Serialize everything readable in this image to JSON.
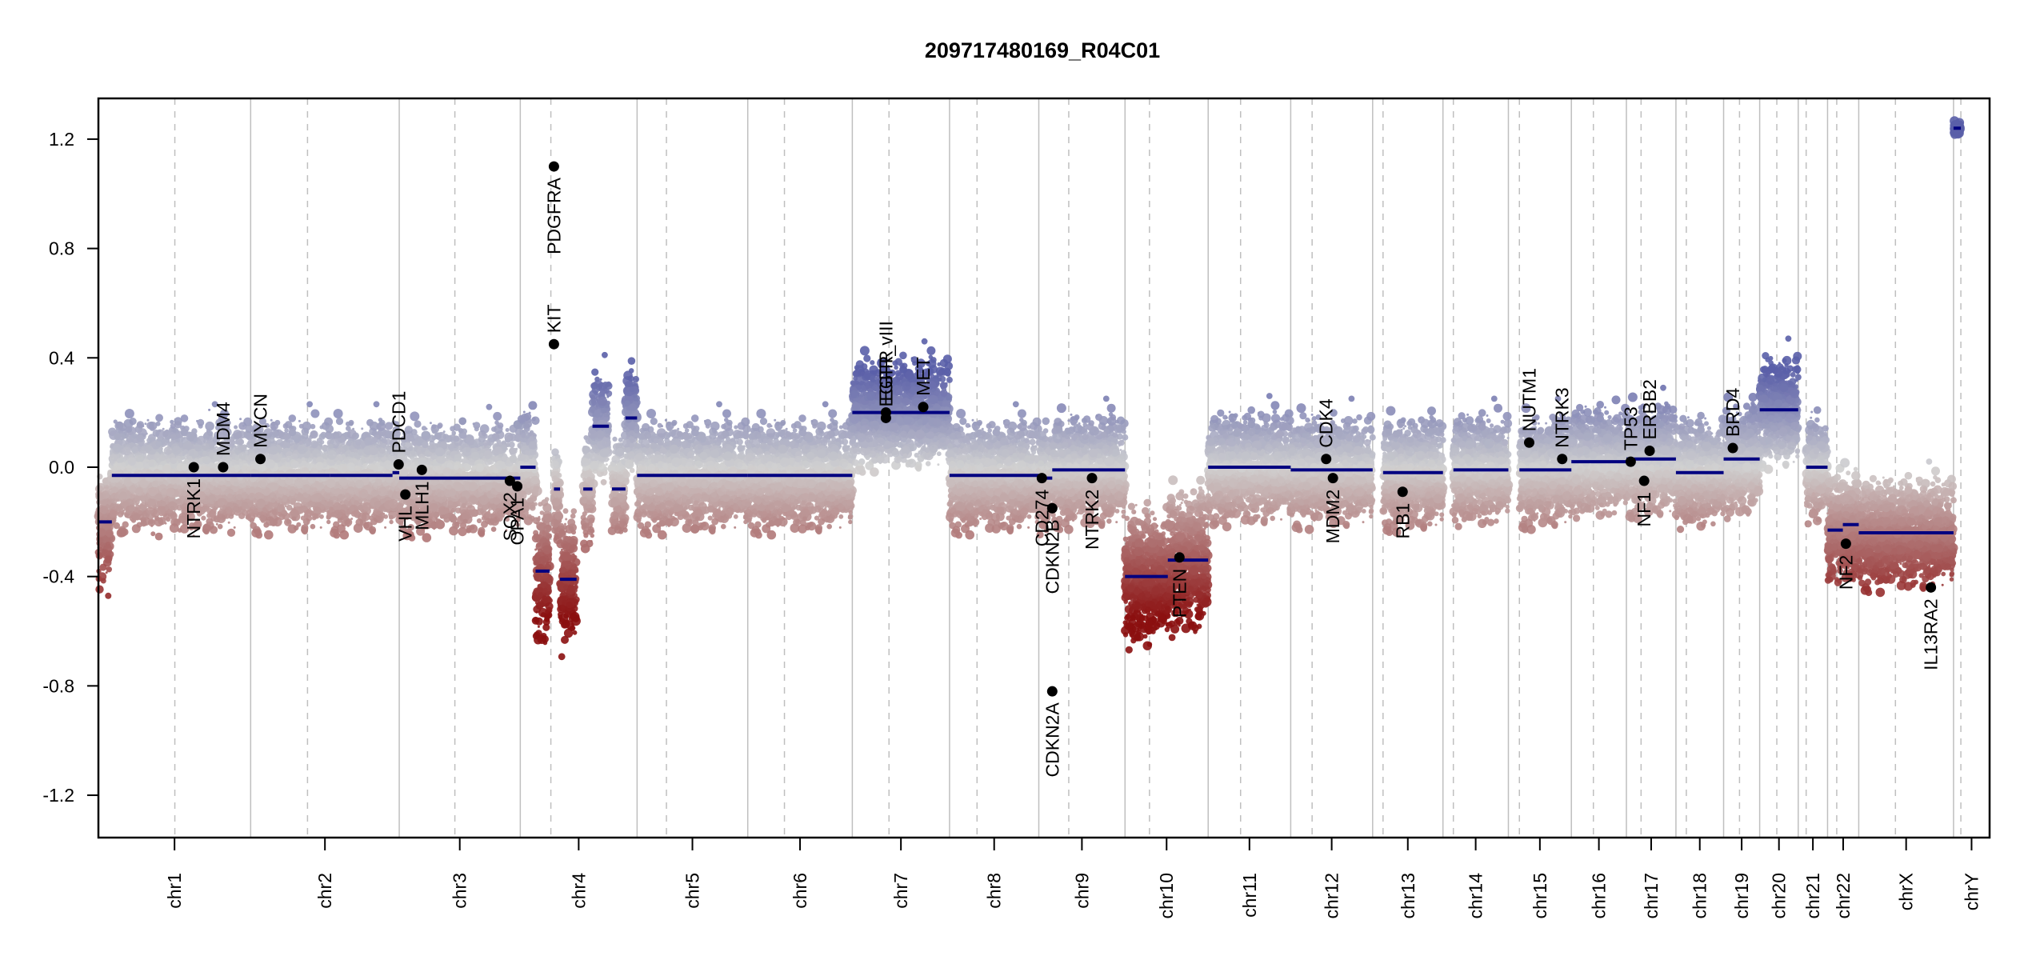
{
  "chart_data": {
    "type": "scatter",
    "title": "209717480169_R04C01",
    "xlabel": "",
    "ylabel": "",
    "ylim": [
      -1.355,
      1.349
    ],
    "y_ticks": [
      -1.2,
      -0.8,
      -0.4,
      0.0,
      0.4,
      0.8,
      1.2
    ],
    "y_tick_labels": [
      "-1.2",
      "-0.8",
      "-0.4",
      "0.0",
      "0.4",
      "0.8",
      "1.2"
    ],
    "grid": false,
    "legend": "none",
    "colors": {
      "gain": "#5a5fa8",
      "neutral": "#d0d0d0",
      "loss": "#8b0f0f",
      "segment": "#000080",
      "gene_point": "#000000",
      "chrom_line": "#bfbfbf",
      "centromere_line": "#bfbfbf"
    },
    "chromosomes": [
      {
        "name": "chr1",
        "length": 249,
        "centromere": 125
      },
      {
        "name": "chr2",
        "length": 243,
        "centromere": 93
      },
      {
        "name": "chr3",
        "length": 198,
        "centromere": 91
      },
      {
        "name": "chr4",
        "length": 191,
        "centromere": 50
      },
      {
        "name": "chr5",
        "length": 181,
        "centromere": 48
      },
      {
        "name": "chr6",
        "length": 171,
        "centromere": 60
      },
      {
        "name": "chr7",
        "length": 159,
        "centromere": 60
      },
      {
        "name": "chr8",
        "length": 146,
        "centromere": 45
      },
      {
        "name": "chr9",
        "length": 141,
        "centromere": 49
      },
      {
        "name": "chr10",
        "length": 136,
        "centromere": 40
      },
      {
        "name": "chr11",
        "length": 135,
        "centromere": 53
      },
      {
        "name": "chr12",
        "length": 134,
        "centromere": 35
      },
      {
        "name": "chr13",
        "length": 115,
        "centromere": 17
      },
      {
        "name": "chr14",
        "length": 107,
        "centromere": 17
      },
      {
        "name": "chr15",
        "length": 103,
        "centromere": 18
      },
      {
        "name": "chr16",
        "length": 90,
        "centromere": 36
      },
      {
        "name": "chr17",
        "length": 81,
        "centromere": 24
      },
      {
        "name": "chr18",
        "length": 78,
        "centromere": 17
      },
      {
        "name": "chr19",
        "length": 59,
        "centromere": 26
      },
      {
        "name": "chr20",
        "length": 63,
        "centromere": 28
      },
      {
        "name": "chr21",
        "length": 48,
        "centromere": 13
      },
      {
        "name": "chr22",
        "length": 51,
        "centromere": 15
      },
      {
        "name": "chrX",
        "length": 155,
        "centromere": 60
      },
      {
        "name": "chrY",
        "length": 59,
        "centromere": 12
      }
    ],
    "segments": [
      {
        "chr": "chr1",
        "start": 0,
        "end": 22,
        "value": -0.2
      },
      {
        "chr": "chr1",
        "start": 22,
        "end": 249,
        "value": -0.03
      },
      {
        "chr": "chr2",
        "start": 0,
        "end": 130,
        "value": -0.03
      },
      {
        "chr": "chr2",
        "start": 130,
        "end": 232,
        "value": -0.03
      },
      {
        "chr": "chr2",
        "start": 232,
        "end": 243,
        "value": -0.02
      },
      {
        "chr": "chr3",
        "start": 0,
        "end": 198,
        "value": -0.04
      },
      {
        "chr": "chr4",
        "start": 0,
        "end": 25,
        "value": 0.0
      },
      {
        "chr": "chr4",
        "start": 25,
        "end": 48,
        "value": -0.38
      },
      {
        "chr": "chr4",
        "start": 55,
        "end": 65,
        "value": -0.08
      },
      {
        "chr": "chr4",
        "start": 65,
        "end": 92,
        "value": -0.41
      },
      {
        "chr": "chr4",
        "start": 103,
        "end": 118,
        "value": -0.08
      },
      {
        "chr": "chr4",
        "start": 118,
        "end": 145,
        "value": 0.15
      },
      {
        "chr": "chr4",
        "start": 150,
        "end": 172,
        "value": -0.08
      },
      {
        "chr": "chr4",
        "start": 172,
        "end": 191,
        "value": 0.18
      },
      {
        "chr": "chr5",
        "start": 0,
        "end": 181,
        "value": -0.03
      },
      {
        "chr": "chr6",
        "start": 0,
        "end": 171,
        "value": -0.03
      },
      {
        "chr": "chr7",
        "start": 0,
        "end": 159,
        "value": 0.2
      },
      {
        "chr": "chr8",
        "start": 0,
        "end": 146,
        "value": -0.03
      },
      {
        "chr": "chr9",
        "start": 0,
        "end": 22,
        "value": -0.04
      },
      {
        "chr": "chr9",
        "start": 22,
        "end": 141,
        "value": -0.01
      },
      {
        "chr": "chr10",
        "start": 0,
        "end": 70,
        "value": -0.4
      },
      {
        "chr": "chr10",
        "start": 70,
        "end": 136,
        "value": -0.34
      },
      {
        "chr": "chr11",
        "start": 0,
        "end": 135,
        "value": 0.0
      },
      {
        "chr": "chr12",
        "start": 0,
        "end": 134,
        "value": -0.01
      },
      {
        "chr": "chr13",
        "start": 17,
        "end": 115,
        "value": -0.02
      },
      {
        "chr": "chr14",
        "start": 17,
        "end": 107,
        "value": -0.01
      },
      {
        "chr": "chr15",
        "start": 18,
        "end": 103,
        "value": -0.01
      },
      {
        "chr": "chr16",
        "start": 0,
        "end": 90,
        "value": 0.02
      },
      {
        "chr": "chr17",
        "start": 0,
        "end": 81,
        "value": 0.03
      },
      {
        "chr": "chr18",
        "start": 0,
        "end": 78,
        "value": -0.02
      },
      {
        "chr": "chr19",
        "start": 0,
        "end": 59,
        "value": 0.03
      },
      {
        "chr": "chr20",
        "start": 0,
        "end": 63,
        "value": 0.21
      },
      {
        "chr": "chr21",
        "start": 13,
        "end": 48,
        "value": 0.0
      },
      {
        "chr": "chr22",
        "start": 0,
        "end": 25,
        "value": -0.23
      },
      {
        "chr": "chr22",
        "start": 25,
        "end": 51,
        "value": -0.21
      },
      {
        "chr": "chrX",
        "start": 0,
        "end": 155,
        "value": -0.24
      },
      {
        "chr": "chrY",
        "start": 0,
        "end": 12,
        "value": 1.24
      }
    ],
    "genes": [
      {
        "name": "NTRK1",
        "chr": "chr1",
        "pos": 156,
        "value": 0.0,
        "label_side": "below"
      },
      {
        "name": "MDM4",
        "chr": "chr1",
        "pos": 204,
        "value": 0.0,
        "label_side": "above"
      },
      {
        "name": "MYCN",
        "chr": "chr2",
        "pos": 16,
        "value": 0.03,
        "label_side": "above"
      },
      {
        "name": "PDCD1",
        "chr": "chr2",
        "pos": 242,
        "value": 0.01,
        "label_side": "above"
      },
      {
        "name": "VHL",
        "chr": "chr3",
        "pos": 10,
        "value": -0.1,
        "label_side": "below"
      },
      {
        "name": "MLH1",
        "chr": "chr3",
        "pos": 37,
        "value": -0.01,
        "label_side": "below"
      },
      {
        "name": "SOX2",
        "chr": "chr3",
        "pos": 181,
        "value": -0.05,
        "label_side": "below"
      },
      {
        "name": "OPA1",
        "chr": "chr3",
        "pos": 193,
        "value": -0.07,
        "label_side": "below"
      },
      {
        "name": "PDGFRA",
        "chr": "chr4",
        "pos": 55,
        "value": 1.1,
        "label_side": "below"
      },
      {
        "name": "KIT",
        "chr": "chr4",
        "pos": 55,
        "value": 0.45,
        "label_side": "above"
      },
      {
        "name": "EGFR",
        "chr": "chr7",
        "pos": 55,
        "value": 0.2,
        "label_side": "above"
      },
      {
        "name": "EGFR_vIII",
        "chr": "chr7",
        "pos": 55,
        "value": 0.18,
        "label_side": "above"
      },
      {
        "name": "MET",
        "chr": "chr7",
        "pos": 116,
        "value": 0.22,
        "label_side": "above"
      },
      {
        "name": "CD274",
        "chr": "chr9",
        "pos": 5,
        "value": -0.04,
        "label_side": "below"
      },
      {
        "name": "CDKN2B",
        "chr": "chr9",
        "pos": 22,
        "value": -0.15,
        "label_side": "below"
      },
      {
        "name": "CDKN2A",
        "chr": "chr9",
        "pos": 22,
        "value": -0.82,
        "label_side": "below"
      },
      {
        "name": "NTRK2",
        "chr": "chr9",
        "pos": 87,
        "value": -0.04,
        "label_side": "below"
      },
      {
        "name": "PTEN",
        "chr": "chr10",
        "pos": 89,
        "value": -0.33,
        "label_side": "below"
      },
      {
        "name": "CDK4",
        "chr": "chr12",
        "pos": 58,
        "value": 0.03,
        "label_side": "above"
      },
      {
        "name": "MDM2",
        "chr": "chr12",
        "pos": 69,
        "value": -0.04,
        "label_side": "below"
      },
      {
        "name": "RB1",
        "chr": "chr13",
        "pos": 49,
        "value": -0.09,
        "label_side": "below"
      },
      {
        "name": "NUTM1",
        "chr": "chr15",
        "pos": 34,
        "value": 0.09,
        "label_side": "above"
      },
      {
        "name": "NTRK3",
        "chr": "chr15",
        "pos": 88,
        "value": 0.03,
        "label_side": "above"
      },
      {
        "name": "TP53",
        "chr": "chr17",
        "pos": 7,
        "value": 0.02,
        "label_side": "above"
      },
      {
        "name": "NF1",
        "chr": "chr17",
        "pos": 29,
        "value": -0.05,
        "label_side": "below"
      },
      {
        "name": "ERBB2",
        "chr": "chr17",
        "pos": 38,
        "value": 0.06,
        "label_side": "above"
      },
      {
        "name": "BRD4",
        "chr": "chr19",
        "pos": 15,
        "value": 0.07,
        "label_side": "above"
      },
      {
        "name": "NF2",
        "chr": "chr22",
        "pos": 30,
        "value": -0.28,
        "label_side": "below"
      },
      {
        "name": "IL13RA2",
        "chrX": true,
        "chr": "chrX",
        "pos": 118,
        "value": -0.44,
        "label_side": "below"
      }
    ]
  }
}
